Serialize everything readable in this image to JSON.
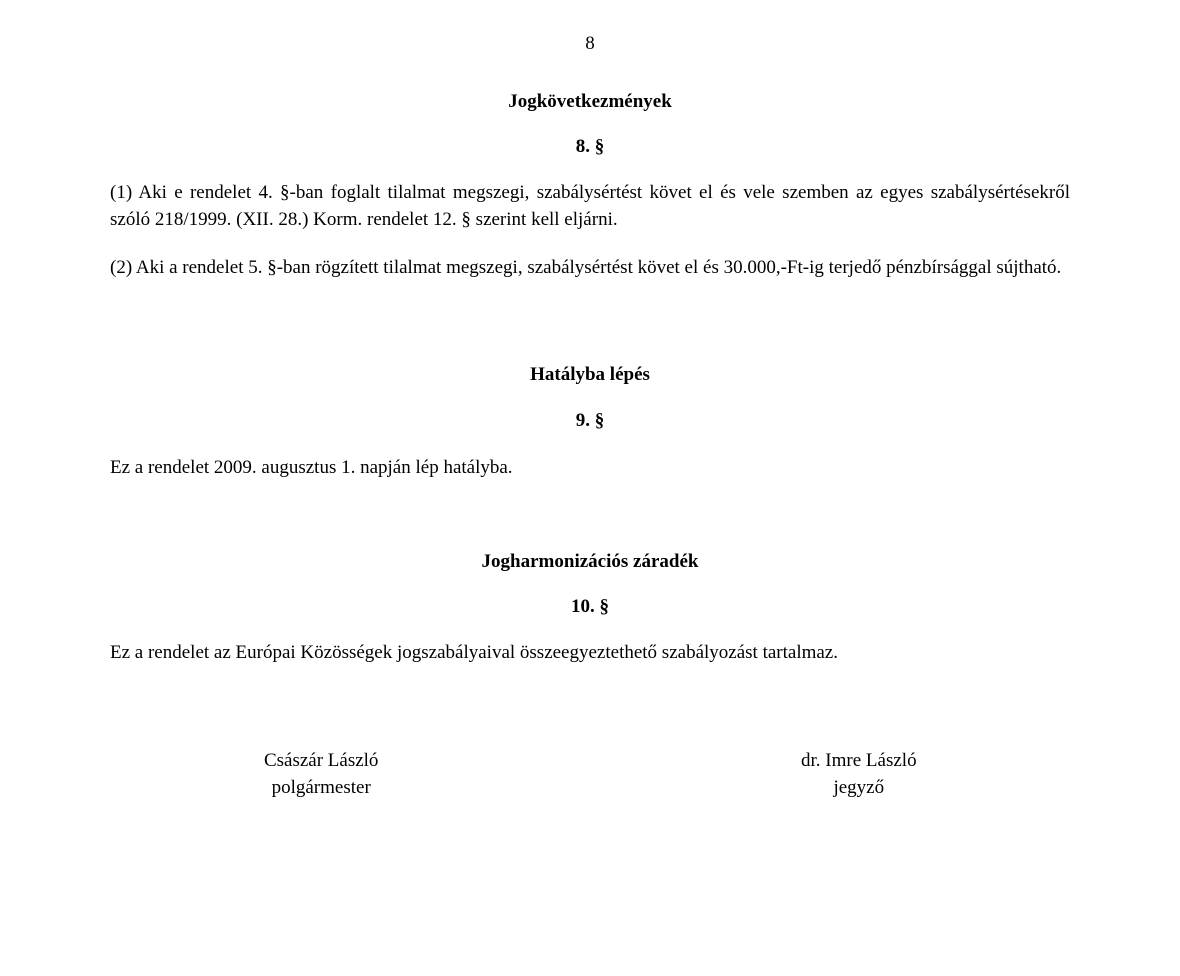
{
  "page_number": "8",
  "section1": {
    "heading": "Jogkövetkezmények",
    "para_number": "8. §",
    "p1": "(1) Aki e rendelet 4. §-ban foglalt tilalmat megszegi, szabálysértést követ el és vele szemben az egyes szabálysértésekről szóló 218/1999. (XII. 28.) Korm. rendelet 12. § szerint kell eljárni.",
    "p2": "(2) Aki a rendelet 5. §-ban rögzített tilalmat megszegi, szabálysértést követ el és 30.000,-Ft-ig terjedő pénzbírsággal sújtható."
  },
  "section2": {
    "heading": "Hatályba lépés",
    "para_number": "9. §",
    "p1": "Ez a rendelet 2009. augusztus 1. napján lép hatályba."
  },
  "section3": {
    "heading": "Jogharmonizációs záradék",
    "para_number": "10. §",
    "p1": "Ez a rendelet az Európai Közösségek jogszabályaival összeegyeztethető szabályozást tartalmaz."
  },
  "signatures": {
    "left": {
      "name": "Császár László",
      "role": "polgármester"
    },
    "right": {
      "name": "dr. Imre László",
      "role": "jegyző"
    }
  }
}
